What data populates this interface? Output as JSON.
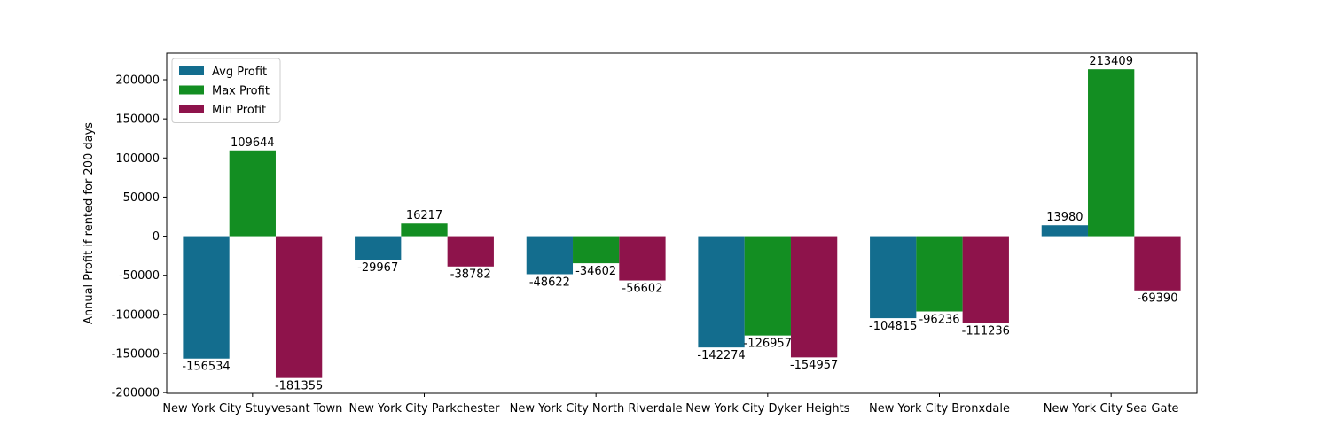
{
  "chart_data": {
    "type": "bar",
    "title": "",
    "xlabel": "",
    "ylabel": "Annual Profit if rented for 200 days",
    "categories": [
      "New York City Stuyvesant Town",
      "New York City Parkchester",
      "New York City North Riverdale",
      "New York City Dyker Heights",
      "New York City Bronxdale",
      "New York City Sea Gate"
    ],
    "series": [
      {
        "name": "Avg Profit",
        "color": "#136d8e",
        "values": [
          -156534,
          -29967,
          -48622,
          -142274,
          -104815,
          13980
        ]
      },
      {
        "name": "Max Profit",
        "color": "#138e22",
        "values": [
          109644,
          16217,
          -34602,
          -126957,
          -96236,
          213409
        ]
      },
      {
        "name": "Min Profit",
        "color": "#8e134b",
        "values": [
          -181355,
          -38782,
          -56602,
          -154957,
          -111236,
          -69390
        ]
      }
    ],
    "ylim": [
      -201000,
      234000
    ],
    "yticks": [
      -200000,
      -150000,
      -100000,
      -50000,
      0,
      50000,
      100000,
      150000,
      200000
    ],
    "legend": "top-left",
    "grid": false,
    "data_labels": true
  }
}
